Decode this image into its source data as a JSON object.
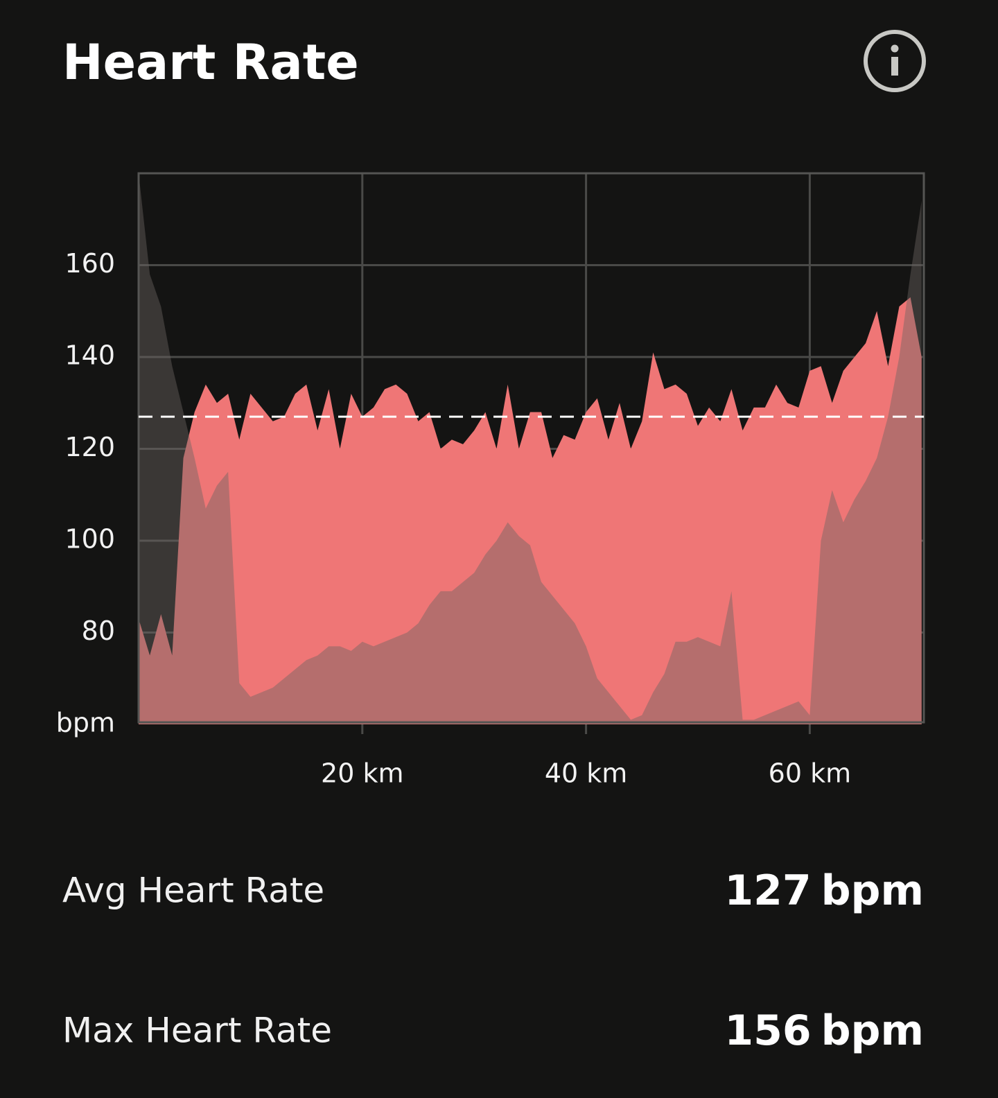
{
  "header": {
    "title": "Heart Rate"
  },
  "chart_data": {
    "type": "area",
    "y_unit": "bpm",
    "x": [
      0,
      1,
      2,
      3,
      4,
      5,
      6,
      7,
      8,
      9,
      10,
      11,
      12,
      13,
      14,
      15,
      16,
      17,
      18,
      19,
      20,
      21,
      22,
      23,
      24,
      25,
      26,
      27,
      28,
      29,
      30,
      31,
      32,
      33,
      34,
      35,
      36,
      37,
      38,
      39,
      40,
      41,
      42,
      43,
      44,
      45,
      46,
      47,
      48,
      49,
      50,
      51,
      52,
      53,
      54,
      55,
      56,
      57,
      58,
      59,
      60,
      61,
      62,
      63,
      64,
      65,
      66,
      67,
      68,
      69,
      70
    ],
    "series": [
      {
        "color": "#ef7676",
        "values": [
          83,
          75,
          84,
          75,
          118,
          128,
          134,
          130,
          132,
          122,
          132,
          129,
          126,
          127,
          132,
          134,
          124,
          133,
          120,
          132,
          127,
          129,
          133,
          134,
          132,
          126,
          128,
          120,
          122,
          121,
          124,
          128,
          120,
          134,
          120,
          128,
          128,
          118,
          123,
          122,
          128,
          131,
          122,
          130,
          120,
          126,
          141,
          133,
          134,
          132,
          125,
          129,
          126,
          133,
          124,
          129,
          129,
          134,
          130,
          129,
          137,
          138,
          130,
          137,
          140,
          143,
          150,
          138,
          151,
          153,
          140
        ]
      },
      {
        "color": "#6a6562",
        "values": [
          180,
          158,
          151,
          138,
          128,
          118,
          107,
          112,
          115,
          69,
          66,
          67,
          68,
          70,
          72,
          74,
          75,
          77,
          77,
          76,
          78,
          77,
          78,
          79,
          80,
          82,
          86,
          89,
          89,
          91,
          93,
          97,
          100,
          104,
          101,
          99,
          91,
          88,
          85,
          82,
          77,
          70,
          67,
          64,
          61,
          62,
          67,
          71,
          78,
          78,
          79,
          78,
          77,
          89,
          61,
          61,
          62,
          63,
          64,
          65,
          62,
          100,
          111,
          104,
          109,
          113,
          118,
          127,
          140,
          158,
          174
        ]
      }
    ],
    "xlim": [
      0,
      70.2
    ],
    "ylim": [
      60,
      180
    ],
    "xticks": [
      {
        "value": 20,
        "label": "20 km"
      },
      {
        "value": 40,
        "label": "40 km"
      },
      {
        "value": 60,
        "label": "60 km"
      }
    ],
    "yticks": [
      80,
      100,
      120,
      140,
      160
    ],
    "grid": true
  },
  "stats": [
    {
      "label": "Avg Heart Rate",
      "value": 127,
      "unit": "bpm"
    },
    {
      "label": "Max Heart Rate",
      "value": 156,
      "unit": "bpm"
    }
  ]
}
